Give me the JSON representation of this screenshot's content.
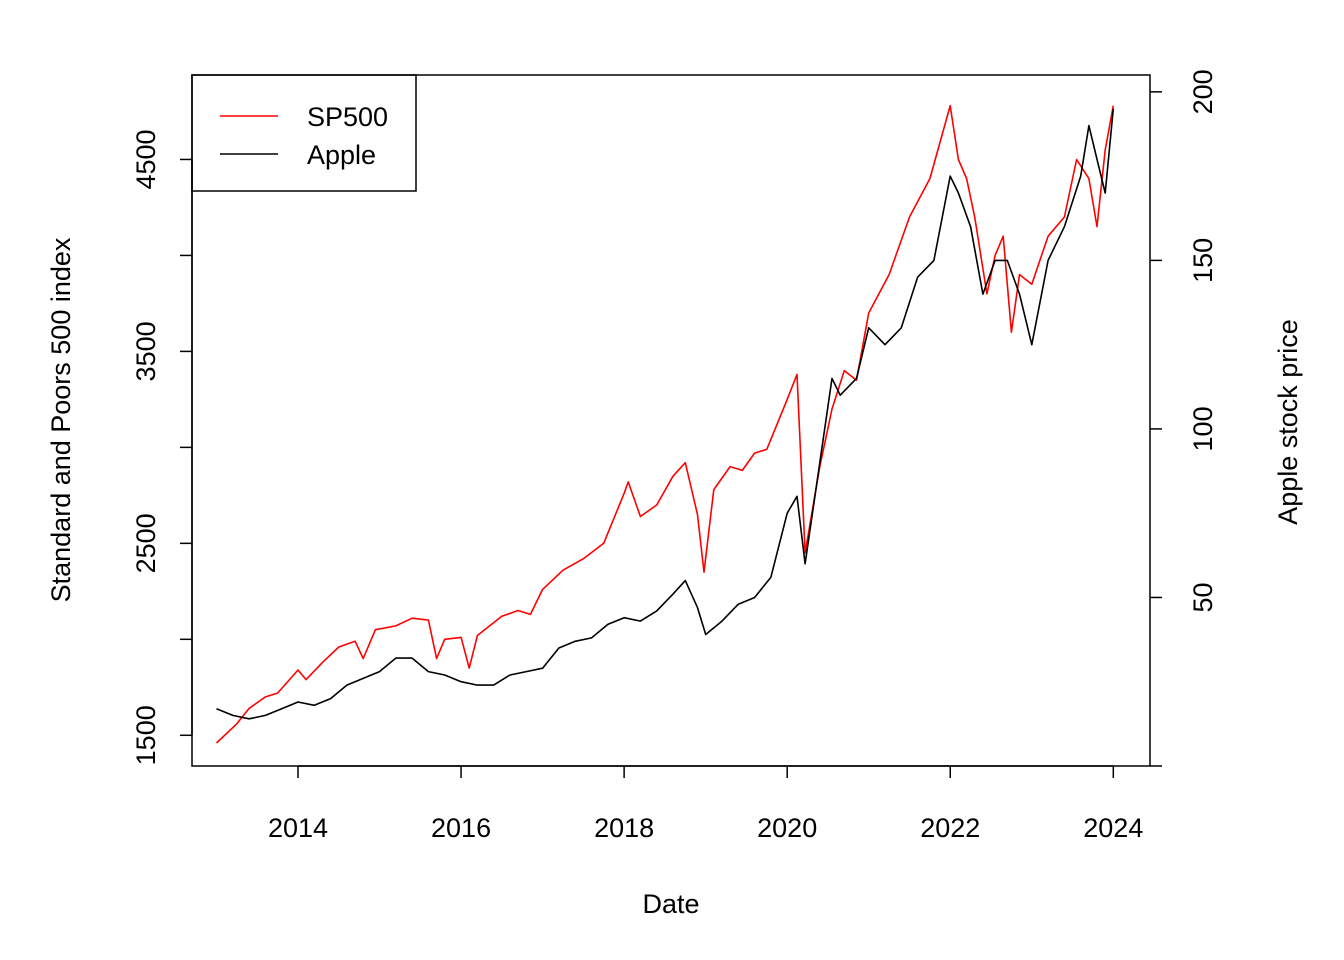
{
  "chart_data": {
    "type": "line",
    "title": "",
    "xlabel": "Date",
    "ylabel_left": "Standard and Poors 500 index",
    "ylabel_right": "Apple stock price",
    "x_ticks": [
      "2014",
      "2016",
      "2018",
      "2020",
      "2022",
      "2024"
    ],
    "y_left_ticks": [
      "1500",
      "2500",
      "3500",
      "4500"
    ],
    "y_right_ticks": [
      "50",
      "100",
      "150",
      "200"
    ],
    "xlim": [
      2012.7,
      2024.45
    ],
    "ylim_left": [
      1340,
      4940
    ],
    "ylim_right": [
      0,
      205
    ],
    "legend_position": "top-left",
    "series": [
      {
        "name": "SP500",
        "axis": "left",
        "color": "#ff0000",
        "x": [
          2013.0,
          2013.25,
          2013.4,
          2013.6,
          2013.75,
          2014.0,
          2014.1,
          2014.3,
          2014.5,
          2014.7,
          2014.8,
          2014.95,
          2015.2,
          2015.4,
          2015.6,
          2015.7,
          2015.8,
          2016.0,
          2016.1,
          2016.2,
          2016.5,
          2016.7,
          2016.85,
          2017.0,
          2017.25,
          2017.5,
          2017.75,
          2018.0,
          2018.05,
          2018.2,
          2018.4,
          2018.6,
          2018.75,
          2018.9,
          2018.98,
          2019.1,
          2019.3,
          2019.45,
          2019.6,
          2019.75,
          2020.0,
          2020.12,
          2020.22,
          2020.4,
          2020.55,
          2020.7,
          2020.85,
          2021.0,
          2021.25,
          2021.5,
          2021.75,
          2022.0,
          2022.1,
          2022.2,
          2022.3,
          2022.45,
          2022.55,
          2022.65,
          2022.75,
          2022.85,
          2023.0,
          2023.2,
          2023.4,
          2023.55,
          2023.7,
          2023.8,
          2023.9,
          2024.0
        ],
        "y": [
          1460,
          1560,
          1640,
          1700,
          1720,
          1840,
          1790,
          1880,
          1960,
          1990,
          1900,
          2050,
          2070,
          2110,
          2100,
          1900,
          2000,
          2010,
          1850,
          2020,
          2120,
          2150,
          2130,
          2260,
          2360,
          2420,
          2500,
          2760,
          2820,
          2640,
          2700,
          2850,
          2920,
          2650,
          2350,
          2780,
          2900,
          2880,
          2970,
          2990,
          3250,
          3380,
          2450,
          2900,
          3200,
          3400,
          3350,
          3700,
          3900,
          4200,
          4400,
          4780,
          4500,
          4400,
          4200,
          3800,
          4000,
          4100,
          3600,
          3900,
          3850,
          4100,
          4200,
          4500,
          4400,
          4150,
          4550,
          4780
        ]
      },
      {
        "name": "Apple",
        "axis": "right",
        "color": "#000000",
        "x": [
          2013.0,
          2013.2,
          2013.4,
          2013.6,
          2013.8,
          2014.0,
          2014.2,
          2014.4,
          2014.6,
          2014.8,
          2015.0,
          2015.2,
          2015.4,
          2015.6,
          2015.8,
          2016.0,
          2016.2,
          2016.4,
          2016.6,
          2016.8,
          2017.0,
          2017.2,
          2017.4,
          2017.6,
          2017.8,
          2018.0,
          2018.2,
          2018.4,
          2018.6,
          2018.75,
          2018.9,
          2019.0,
          2019.2,
          2019.4,
          2019.6,
          2019.8,
          2020.0,
          2020.12,
          2020.22,
          2020.4,
          2020.55,
          2020.65,
          2020.85,
          2021.0,
          2021.2,
          2021.4,
          2021.6,
          2021.8,
          2022.0,
          2022.1,
          2022.25,
          2022.4,
          2022.55,
          2022.7,
          2022.85,
          2023.0,
          2023.2,
          2023.4,
          2023.6,
          2023.7,
          2023.8,
          2023.9,
          2024.0
        ],
        "y": [
          17,
          15,
          14,
          15,
          17,
          19,
          18,
          20,
          24,
          26,
          28,
          32,
          32,
          28,
          27,
          25,
          24,
          24,
          27,
          28,
          29,
          35,
          37,
          38,
          42,
          44,
          43,
          46,
          51,
          55,
          47,
          39,
          43,
          48,
          50,
          56,
          75,
          80,
          60,
          90,
          115,
          110,
          115,
          130,
          125,
          130,
          145,
          150,
          175,
          170,
          160,
          140,
          150,
          150,
          140,
          125,
          150,
          160,
          175,
          190,
          180,
          170,
          195
        ]
      }
    ]
  }
}
